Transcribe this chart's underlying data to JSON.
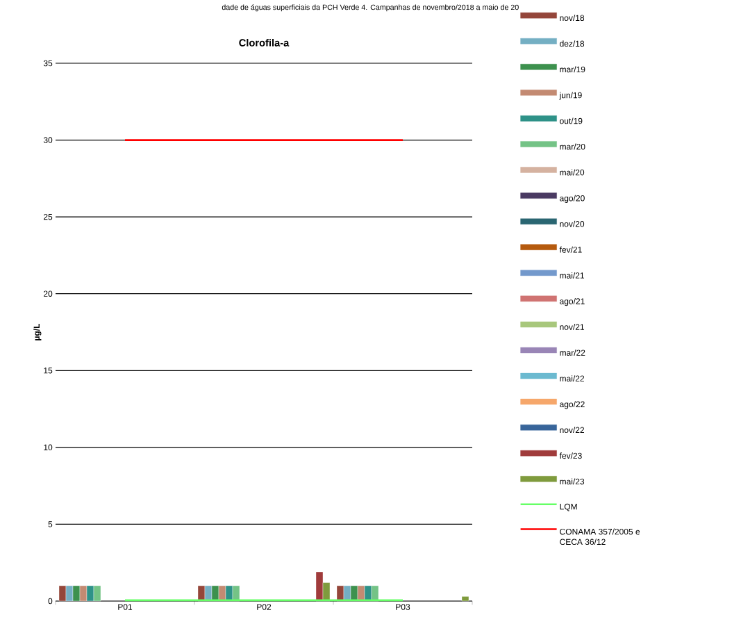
{
  "chart_data": {
    "type": "bar",
    "title": "Clorofila-a",
    "ylabel": "µg/L",
    "annotations": [
      "dade de águas superficiais da PCH Verde 4. Campanhas de novembro/2018 a maio de 20"
    ],
    "categories": [
      "P01",
      "P02",
      "P03"
    ],
    "ylim": [
      0,
      35
    ],
    "yticks": [
      0,
      5,
      10,
      15,
      20,
      25,
      30,
      35
    ],
    "grid": "y",
    "legend": "right",
    "series": [
      {
        "name": "nov/18",
        "color": "#94463A",
        "values": [
          1,
          1,
          1
        ]
      },
      {
        "name": "dez/18",
        "color": "#74AFC3",
        "values": [
          1,
          1,
          1
        ]
      },
      {
        "name": "mar/19",
        "color": "#3D914E",
        "values": [
          1,
          1,
          1
        ]
      },
      {
        "name": "jun/19",
        "color": "#C38A72",
        "values": [
          1,
          1,
          1
        ]
      },
      {
        "name": "out/19",
        "color": "#2E9288",
        "values": [
          1,
          1,
          1
        ]
      },
      {
        "name": "mar/20",
        "color": "#74C386",
        "values": [
          1,
          1,
          1
        ]
      },
      {
        "name": "mai/20",
        "color": "#D5B2A0",
        "values": [
          null,
          null,
          null
        ]
      },
      {
        "name": "ago/20",
        "color": "#4A3A62",
        "values": [
          null,
          null,
          null
        ]
      },
      {
        "name": "nov/20",
        "color": "#2A6672",
        "values": [
          null,
          null,
          null
        ]
      },
      {
        "name": "fev/21",
        "color": "#B55A0E",
        "values": [
          null,
          null,
          null
        ]
      },
      {
        "name": "mai/21",
        "color": "#7399CC",
        "values": [
          null,
          null,
          null
        ]
      },
      {
        "name": "ago/21",
        "color": "#D07372",
        "values": [
          null,
          null,
          null
        ]
      },
      {
        "name": "nov/21",
        "color": "#A8C77C",
        "values": [
          null,
          null,
          null
        ]
      },
      {
        "name": "mar/22",
        "color": "#9985B6",
        "values": [
          null,
          null,
          null
        ]
      },
      {
        "name": "mai/22",
        "color": "#6CBAD0",
        "values": [
          null,
          null,
          null
        ]
      },
      {
        "name": "ago/22",
        "color": "#F6A76B",
        "values": [
          null,
          null,
          null
        ]
      },
      {
        "name": "nov/22",
        "color": "#38659A",
        "values": [
          null,
          null,
          null
        ]
      },
      {
        "name": "fev/23",
        "color": "#A03B3B",
        "values": [
          null,
          1.9,
          null
        ]
      },
      {
        "name": "mai/23",
        "color": "#7F9B3D",
        "values": [
          null,
          1.2,
          0.3
        ]
      },
      {
        "name": "LQM",
        "type": "line",
        "color": "#66FF66",
        "values": [
          0.05,
          0.05,
          0.05
        ]
      },
      {
        "name": "CONAMA 357/2005 e CECA 36/12",
        "type": "line",
        "color": "#FF0000",
        "values": [
          30,
          30,
          30
        ]
      }
    ]
  }
}
